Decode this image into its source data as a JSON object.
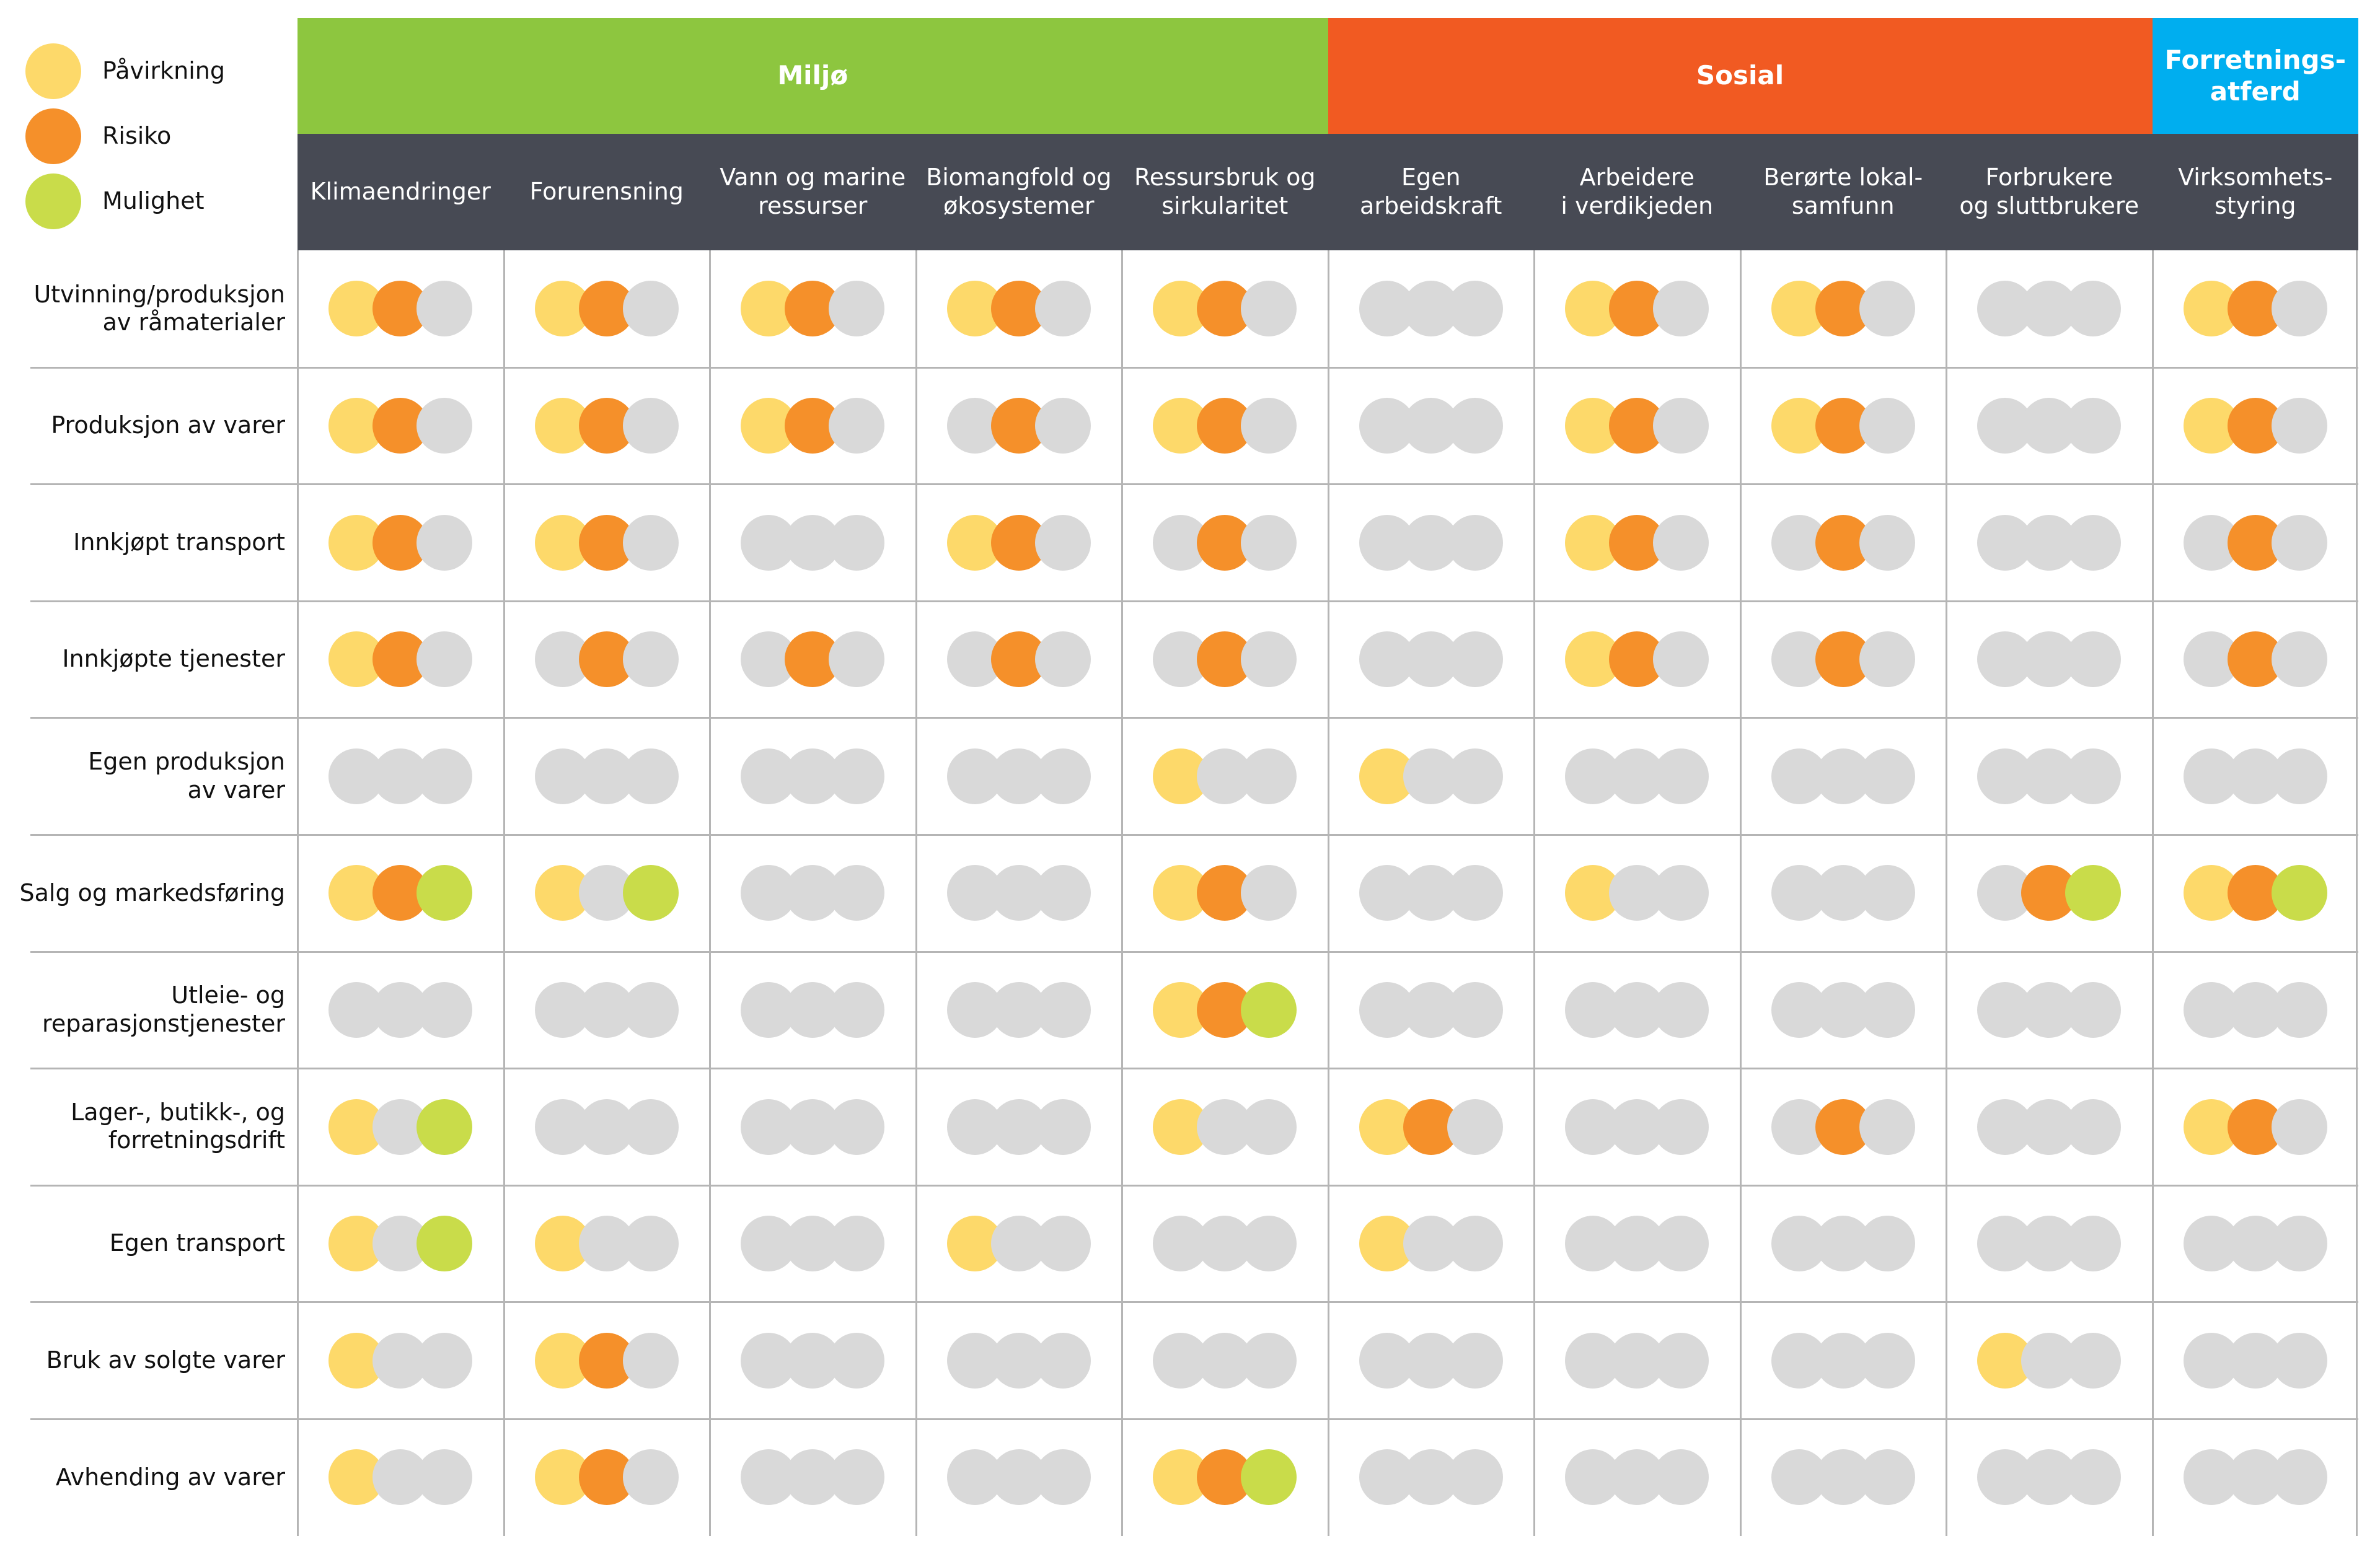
{
  "legend": [
    {
      "label": "Påvirkning",
      "color": "#fdd96a"
    },
    {
      "label": "Risiko",
      "color": "#f5902a"
    },
    {
      "label": "Mulighet",
      "color": "#c9dc4a"
    }
  ],
  "inactive_color": "#d9d9d9",
  "header_color": "#474a54",
  "groups": [
    {
      "label": "Miljø",
      "color": "#8dc63f",
      "columns": [
        "Klimaendringer",
        "Forurensning",
        "Vann og marine\nressurser",
        "Biomangfold og\nøkosystemer",
        "Ressursbruk og\nsirkularitet"
      ]
    },
    {
      "label": "Sosial",
      "color": "#f15a22",
      "columns": [
        "Egen\narbeidskraft",
        "Arbeidere\ni verdikjeden",
        "Berørte lokal-\nsamfunn",
        "Forbrukere\nog sluttbrukere"
      ]
    },
    {
      "label": "Forretnings-\natferd",
      "color": "#00aeef",
      "columns": [
        "Virksomhets-\nstyring"
      ]
    }
  ],
  "rows": [
    {
      "label": "Utvinning/produksjon\nav råmaterialer",
      "cells": [
        [
          1,
          1,
          0
        ],
        [
          1,
          1,
          0
        ],
        [
          1,
          1,
          0
        ],
        [
          1,
          1,
          0
        ],
        [
          1,
          1,
          0
        ],
        [
          0,
          0,
          0
        ],
        [
          1,
          1,
          0
        ],
        [
          1,
          1,
          0
        ],
        [
          0,
          0,
          0
        ],
        [
          1,
          1,
          0
        ]
      ]
    },
    {
      "label": "Produksjon av varer",
      "cells": [
        [
          1,
          1,
          0
        ],
        [
          1,
          1,
          0
        ],
        [
          1,
          1,
          0
        ],
        [
          0,
          1,
          0
        ],
        [
          1,
          1,
          0
        ],
        [
          0,
          0,
          0
        ],
        [
          1,
          1,
          0
        ],
        [
          1,
          1,
          0
        ],
        [
          0,
          0,
          0
        ],
        [
          1,
          1,
          0
        ]
      ]
    },
    {
      "label": "Innkjøpt transport",
      "cells": [
        [
          1,
          1,
          0
        ],
        [
          1,
          1,
          0
        ],
        [
          0,
          0,
          0
        ],
        [
          1,
          1,
          0
        ],
        [
          0,
          1,
          0
        ],
        [
          0,
          0,
          0
        ],
        [
          1,
          1,
          0
        ],
        [
          0,
          1,
          0
        ],
        [
          0,
          0,
          0
        ],
        [
          0,
          1,
          0
        ]
      ]
    },
    {
      "label": "Innkjøpte tjenester",
      "cells": [
        [
          1,
          1,
          0
        ],
        [
          0,
          1,
          0
        ],
        [
          0,
          1,
          0
        ],
        [
          0,
          1,
          0
        ],
        [
          0,
          1,
          0
        ],
        [
          0,
          0,
          0
        ],
        [
          1,
          1,
          0
        ],
        [
          0,
          1,
          0
        ],
        [
          0,
          0,
          0
        ],
        [
          0,
          1,
          0
        ]
      ]
    },
    {
      "label": "Egen produksjon\nav varer",
      "cells": [
        [
          0,
          0,
          0
        ],
        [
          0,
          0,
          0
        ],
        [
          0,
          0,
          0
        ],
        [
          0,
          0,
          0
        ],
        [
          1,
          0,
          0
        ],
        [
          1,
          0,
          0
        ],
        [
          0,
          0,
          0
        ],
        [
          0,
          0,
          0
        ],
        [
          0,
          0,
          0
        ],
        [
          0,
          0,
          0
        ]
      ]
    },
    {
      "label": "Salg og markedsføring",
      "cells": [
        [
          1,
          1,
          1
        ],
        [
          1,
          0,
          1
        ],
        [
          0,
          0,
          0
        ],
        [
          0,
          0,
          0
        ],
        [
          1,
          1,
          0
        ],
        [
          0,
          0,
          0
        ],
        [
          1,
          0,
          0
        ],
        [
          0,
          0,
          0
        ],
        [
          0,
          1,
          1
        ],
        [
          1,
          1,
          1
        ]
      ]
    },
    {
      "label": "Utleie- og\nreparasjonstjenester",
      "cells": [
        [
          0,
          0,
          0
        ],
        [
          0,
          0,
          0
        ],
        [
          0,
          0,
          0
        ],
        [
          0,
          0,
          0
        ],
        [
          1,
          1,
          1
        ],
        [
          0,
          0,
          0
        ],
        [
          0,
          0,
          0
        ],
        [
          0,
          0,
          0
        ],
        [
          0,
          0,
          0
        ],
        [
          0,
          0,
          0
        ]
      ]
    },
    {
      "label": "Lager-, butikk-, og\nforretningsdrift",
      "cells": [
        [
          1,
          0,
          1
        ],
        [
          0,
          0,
          0
        ],
        [
          0,
          0,
          0
        ],
        [
          0,
          0,
          0
        ],
        [
          1,
          0,
          0
        ],
        [
          1,
          1,
          0
        ],
        [
          0,
          0,
          0
        ],
        [
          0,
          1,
          0
        ],
        [
          0,
          0,
          0
        ],
        [
          1,
          1,
          0
        ]
      ]
    },
    {
      "label": "Egen transport",
      "cells": [
        [
          1,
          0,
          1
        ],
        [
          1,
          0,
          0
        ],
        [
          0,
          0,
          0
        ],
        [
          1,
          0,
          0
        ],
        [
          0,
          0,
          0
        ],
        [
          1,
          0,
          0
        ],
        [
          0,
          0,
          0
        ],
        [
          0,
          0,
          0
        ],
        [
          0,
          0,
          0
        ],
        [
          0,
          0,
          0
        ]
      ]
    },
    {
      "label": "Bruk av solgte varer",
      "cells": [
        [
          1,
          0,
          0
        ],
        [
          1,
          1,
          0
        ],
        [
          0,
          0,
          0
        ],
        [
          0,
          0,
          0
        ],
        [
          0,
          0,
          0
        ],
        [
          0,
          0,
          0
        ],
        [
          0,
          0,
          0
        ],
        [
          0,
          0,
          0
        ],
        [
          1,
          0,
          0
        ],
        [
          0,
          0,
          0
        ]
      ]
    },
    {
      "label": "Avhending av varer",
      "cells": [
        [
          1,
          0,
          0
        ],
        [
          1,
          1,
          0
        ],
        [
          0,
          0,
          0
        ],
        [
          0,
          0,
          0
        ],
        [
          1,
          1,
          1
        ],
        [
          0,
          0,
          0
        ],
        [
          0,
          0,
          0
        ],
        [
          0,
          0,
          0
        ],
        [
          0,
          0,
          0
        ],
        [
          0,
          0,
          0
        ]
      ]
    }
  ]
}
